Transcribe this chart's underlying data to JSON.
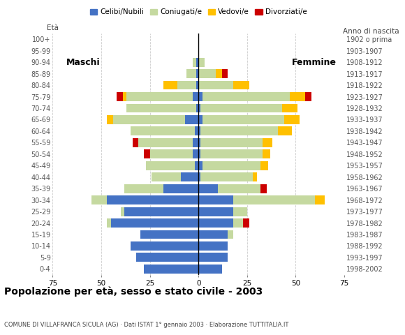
{
  "age_groups": [
    "0-4",
    "5-9",
    "10-14",
    "15-19",
    "20-24",
    "25-29",
    "30-34",
    "35-39",
    "40-44",
    "45-49",
    "50-54",
    "55-59",
    "60-64",
    "65-69",
    "70-74",
    "75-79",
    "80-84",
    "85-89",
    "90-94",
    "95-99",
    "100+"
  ],
  "birth_years": [
    "1998-2002",
    "1993-1997",
    "1988-1992",
    "1983-1987",
    "1978-1982",
    "1973-1977",
    "1968-1972",
    "1963-1967",
    "1958-1962",
    "1953-1957",
    "1948-1952",
    "1943-1947",
    "1938-1942",
    "1933-1937",
    "1928-1932",
    "1923-1927",
    "1918-1922",
    "1913-1917",
    "1908-1912",
    "1903-1907",
    "1902 o prima"
  ],
  "male_celibinubili": [
    28,
    32,
    35,
    30,
    45,
    38,
    47,
    18,
    9,
    2,
    3,
    3,
    2,
    7,
    1,
    3,
    1,
    1,
    1,
    0,
    0
  ],
  "male_coniugati": [
    0,
    0,
    0,
    0,
    2,
    2,
    8,
    20,
    15,
    25,
    22,
    28,
    33,
    37,
    36,
    34,
    10,
    5,
    2,
    0,
    0
  ],
  "male_vedovi": [
    0,
    0,
    0,
    0,
    0,
    0,
    0,
    0,
    0,
    0,
    0,
    0,
    0,
    3,
    0,
    2,
    7,
    0,
    0,
    0,
    0
  ],
  "male_divorziati": [
    0,
    0,
    0,
    0,
    0,
    0,
    0,
    0,
    0,
    0,
    3,
    3,
    0,
    0,
    0,
    3,
    0,
    0,
    0,
    0,
    0
  ],
  "female_celibinubili": [
    12,
    15,
    15,
    15,
    18,
    18,
    18,
    10,
    1,
    2,
    1,
    1,
    1,
    2,
    1,
    2,
    0,
    0,
    0,
    0,
    0
  ],
  "female_coniugati": [
    0,
    0,
    0,
    3,
    5,
    7,
    42,
    22,
    27,
    30,
    32,
    32,
    40,
    42,
    42,
    45,
    18,
    9,
    3,
    0,
    0
  ],
  "female_vedovi": [
    0,
    0,
    0,
    0,
    0,
    0,
    5,
    0,
    2,
    4,
    4,
    5,
    7,
    8,
    8,
    8,
    8,
    3,
    0,
    0,
    0
  ],
  "female_divorziati": [
    0,
    0,
    0,
    0,
    3,
    0,
    0,
    3,
    0,
    0,
    0,
    0,
    0,
    0,
    0,
    3,
    0,
    3,
    0,
    0,
    0
  ],
  "colors": {
    "celibinubili": "#4472c4",
    "coniugati": "#c5d9a0",
    "vedovi": "#ffc000",
    "divorziati": "#cc0000"
  },
  "title": "Popolazione per età, sesso e stato civile - 2003",
  "subtitle": "COMUNE DI VILLAFRANCA SICULA (AG) · Dati ISTAT 1° gennaio 2003 · Elaborazione TUTTITALIA.IT",
  "label_eta": "Età",
  "label_anno": "Anno di nascita",
  "label_maschi": "Maschi",
  "label_femmine": "Femmine",
  "xlim": 75,
  "background_color": "#ffffff",
  "grid_color": "#cccccc",
  "legend_labels": [
    "Celibi/Nubili",
    "Coniugati/e",
    "Vedovi/e",
    "Divorziati/e"
  ]
}
